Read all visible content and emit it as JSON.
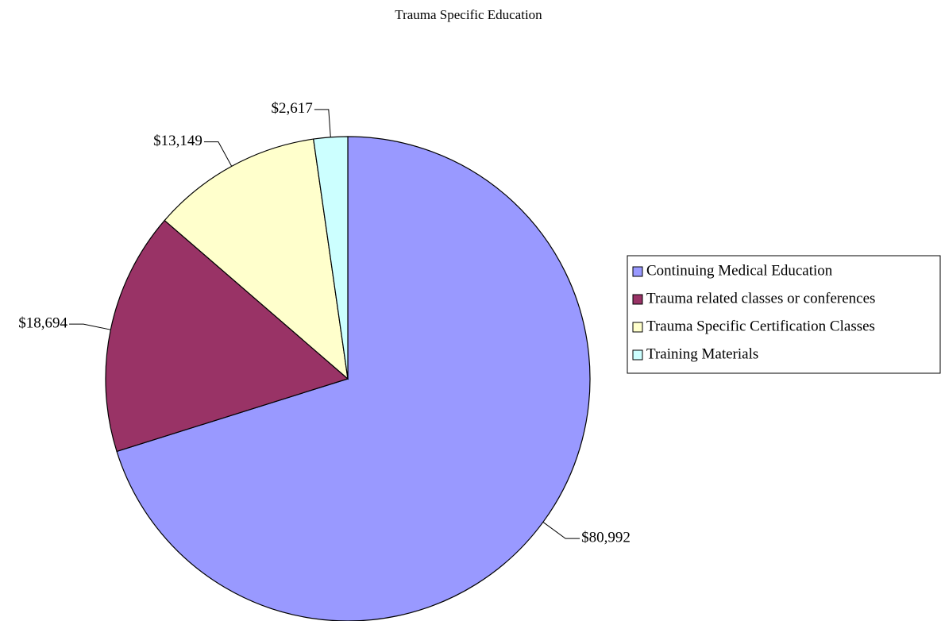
{
  "chart_data": {
    "type": "pie",
    "title": "Trauma Specific Education",
    "categories": [
      "Continuing Medical Education",
      "Trauma related classes or conferences",
      "Trauma Specific Certification Classes",
      "Training Materials"
    ],
    "values": [
      80992,
      18694,
      13149,
      2617
    ],
    "value_labels": [
      "$80,992",
      "$18,694",
      "$13,149",
      "$2,617"
    ],
    "colors": [
      "#9999ff",
      "#993366",
      "#ffffcc",
      "#ccffff"
    ],
    "legend": "right"
  }
}
